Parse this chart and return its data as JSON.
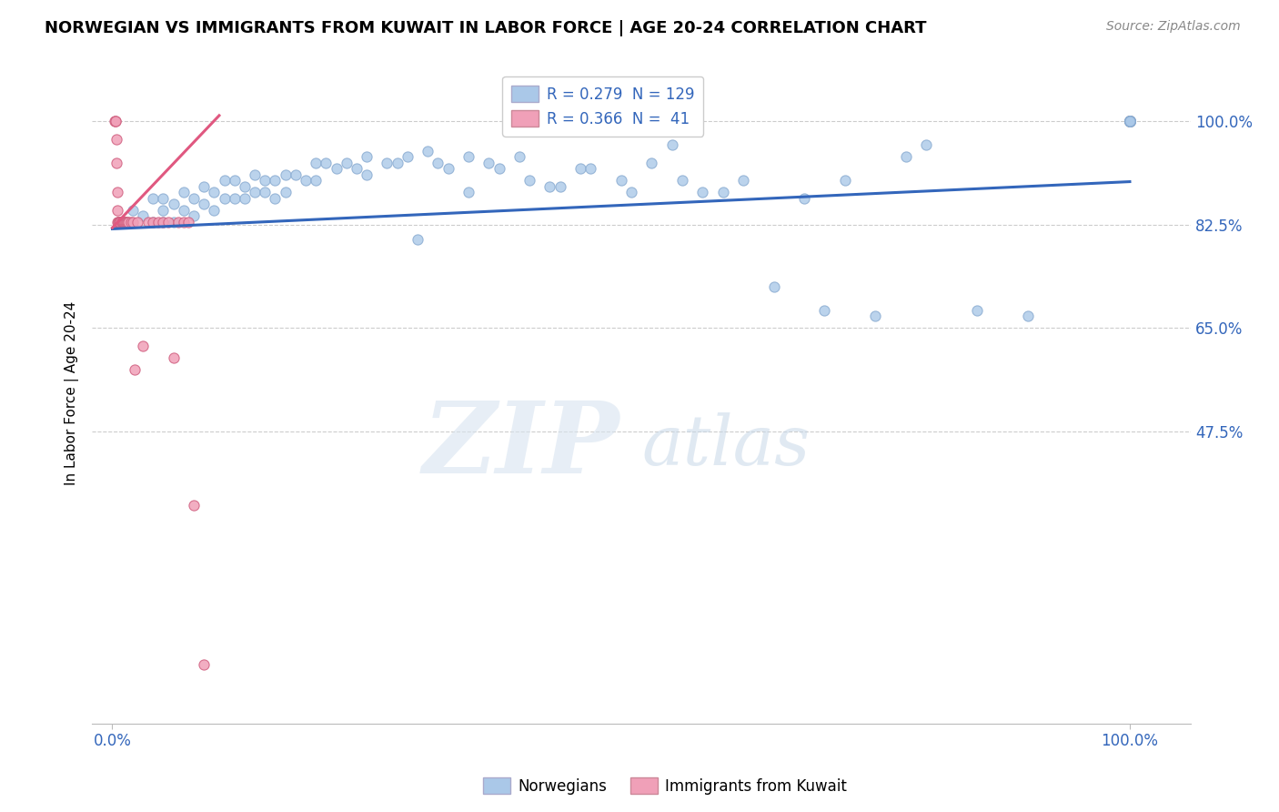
{
  "title": "NORWEGIAN VS IMMIGRANTS FROM KUWAIT IN LABOR FORCE | AGE 20-24 CORRELATION CHART",
  "source": "Source: ZipAtlas.com",
  "ylabel": "In Labor Force | Age 20-24",
  "ytick_vals": [
    0.475,
    0.65,
    0.825,
    1.0
  ],
  "ytick_labels": [
    "47.5%",
    "65.0%",
    "82.5%",
    "100.0%"
  ],
  "xlim": [
    -0.02,
    1.06
  ],
  "ylim": [
    -0.02,
    1.1
  ],
  "legend_blue_r": "0.279",
  "legend_blue_n": "129",
  "legend_pink_r": "0.366",
  "legend_pink_n": " 41",
  "blue_color": "#aac8e8",
  "blue_edge_color": "#88aad0",
  "blue_line_color": "#3366bb",
  "pink_color": "#f0a0b8",
  "pink_edge_color": "#d06080",
  "pink_line_color": "#e05880",
  "blue_trend_x": [
    0.0,
    1.0
  ],
  "blue_trend_y": [
    0.818,
    0.898
  ],
  "pink_trend_x": [
    0.0,
    0.105
  ],
  "pink_trend_y": [
    0.82,
    1.01
  ],
  "blue_x": [
    0.02,
    0.03,
    0.04,
    0.04,
    0.05,
    0.05,
    0.05,
    0.06,
    0.06,
    0.07,
    0.07,
    0.08,
    0.08,
    0.09,
    0.09,
    0.1,
    0.1,
    0.11,
    0.11,
    0.12,
    0.12,
    0.13,
    0.13,
    0.14,
    0.14,
    0.15,
    0.15,
    0.16,
    0.16,
    0.17,
    0.17,
    0.18,
    0.19,
    0.2,
    0.2,
    0.21,
    0.22,
    0.23,
    0.24,
    0.25,
    0.25,
    0.27,
    0.28,
    0.29,
    0.3,
    0.31,
    0.32,
    0.33,
    0.35,
    0.35,
    0.37,
    0.38,
    0.4,
    0.41,
    0.43,
    0.44,
    0.46,
    0.47,
    0.5,
    0.51,
    0.53,
    0.55,
    0.56,
    0.58,
    0.6,
    0.62,
    0.65,
    0.68,
    0.7,
    0.72,
    0.75,
    0.78,
    0.8,
    0.85,
    0.9,
    1.0,
    1.0,
    1.0,
    1.0,
    1.0,
    1.0,
    1.0,
    1.0,
    1.0,
    1.0,
    1.0,
    1.0,
    1.0,
    1.0,
    1.0,
    1.0,
    1.0,
    1.0,
    1.0,
    1.0,
    1.0,
    1.0,
    1.0,
    1.0,
    1.0,
    1.0,
    1.0,
    1.0,
    1.0,
    1.0,
    1.0,
    1.0,
    1.0,
    1.0,
    1.0,
    1.0,
    1.0,
    1.0,
    1.0,
    1.0,
    1.0,
    1.0,
    1.0,
    1.0,
    1.0,
    1.0,
    1.0,
    1.0,
    1.0,
    1.0
  ],
  "blue_y": [
    0.85,
    0.84,
    0.87,
    0.83,
    0.87,
    0.85,
    0.83,
    0.86,
    0.83,
    0.88,
    0.85,
    0.87,
    0.84,
    0.89,
    0.86,
    0.88,
    0.85,
    0.9,
    0.87,
    0.9,
    0.87,
    0.89,
    0.87,
    0.91,
    0.88,
    0.9,
    0.88,
    0.9,
    0.87,
    0.91,
    0.88,
    0.91,
    0.9,
    0.93,
    0.9,
    0.93,
    0.92,
    0.93,
    0.92,
    0.94,
    0.91,
    0.93,
    0.93,
    0.94,
    0.8,
    0.95,
    0.93,
    0.92,
    0.88,
    0.94,
    0.93,
    0.92,
    0.94,
    0.9,
    0.89,
    0.89,
    0.92,
    0.92,
    0.9,
    0.88,
    0.93,
    0.96,
    0.9,
    0.88,
    0.88,
    0.9,
    0.72,
    0.87,
    0.68,
    0.9,
    0.67,
    0.94,
    0.96,
    0.68,
    0.67,
    1.0,
    1.0,
    1.0,
    1.0,
    1.0,
    1.0,
    1.0,
    1.0,
    1.0,
    1.0,
    1.0,
    1.0,
    1.0,
    1.0,
    1.0,
    1.0,
    1.0,
    1.0,
    1.0,
    1.0,
    1.0,
    1.0,
    1.0,
    1.0,
    1.0,
    1.0,
    1.0,
    1.0,
    1.0,
    1.0,
    1.0,
    1.0,
    1.0,
    1.0,
    1.0,
    1.0,
    1.0,
    1.0,
    1.0,
    1.0,
    1.0,
    1.0,
    1.0,
    1.0,
    1.0,
    1.0,
    1.0,
    1.0,
    1.0,
    1.0
  ],
  "pink_x": [
    0.002,
    0.003,
    0.003,
    0.004,
    0.004,
    0.005,
    0.005,
    0.005,
    0.006,
    0.006,
    0.007,
    0.007,
    0.008,
    0.008,
    0.009,
    0.009,
    0.01,
    0.01,
    0.011,
    0.011,
    0.012,
    0.013,
    0.014,
    0.015,
    0.016,
    0.018,
    0.02,
    0.022,
    0.025,
    0.03,
    0.035,
    0.04,
    0.045,
    0.05,
    0.055,
    0.06,
    0.065,
    0.07,
    0.075,
    0.08,
    0.09
  ],
  "pink_y": [
    1.0,
    1.0,
    1.0,
    0.97,
    0.93,
    0.88,
    0.85,
    0.83,
    0.83,
    0.83,
    0.83,
    0.83,
    0.83,
    0.83,
    0.83,
    0.83,
    0.83,
    0.83,
    0.83,
    0.83,
    0.83,
    0.83,
    0.83,
    0.83,
    0.83,
    0.83,
    0.83,
    0.58,
    0.83,
    0.62,
    0.83,
    0.83,
    0.83,
    0.83,
    0.83,
    0.6,
    0.83,
    0.83,
    0.83,
    0.35,
    0.08
  ]
}
